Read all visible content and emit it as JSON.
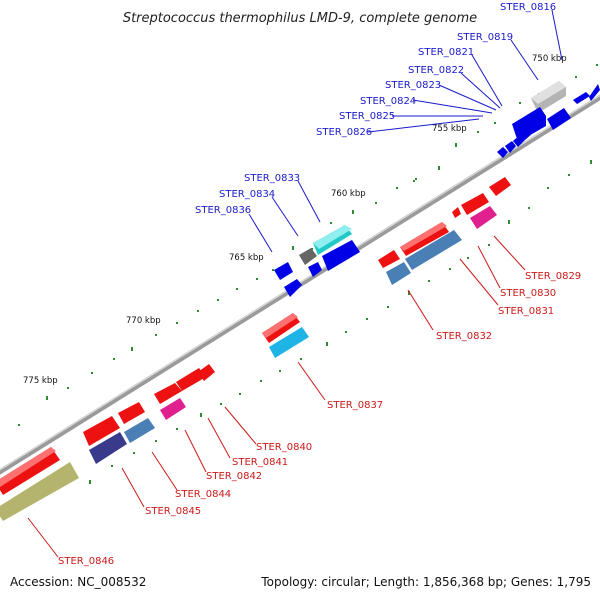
{
  "title": "Streptococcus thermophilus LMD-9, complete genome",
  "footer": {
    "accession": "Accession: NC_008532",
    "topology": "Topology: circular; Length: 1,856,368 bp; Genes: 1,795"
  },
  "scale_labels": [
    "750 kbp",
    "755 kbp",
    "760 kbp",
    "765 kbp",
    "770 kbp",
    "775 kbp"
  ],
  "colors": {
    "backbone": "#8a8a8a",
    "tick": "#2e8b2e",
    "blue_gene": "#0000e6",
    "red_gene": "#ee1111",
    "cyan_gene": "#22c8c8",
    "steel_gene": "#4a7fb5",
    "pink_gene": "#e0208f",
    "gray_gene": "#b4b4b4",
    "dark_gray_gene": "#666666",
    "navy_gene": "#3a3a8c",
    "olive_gene": "#b4b46e",
    "skyblue_gene": "#1eb4e6",
    "label_blue": "#1a1acc",
    "label_red": "#cc1a1a"
  },
  "gene_labels_upper": [
    "STER_0816",
    "STER_0819",
    "STER_0821",
    "STER_0822",
    "STER_0823",
    "STER_0824",
    "STER_0825",
    "STER_0826",
    "STER_0833",
    "STER_0834",
    "STER_0836"
  ],
  "gene_labels_lower": [
    "STER_0829",
    "STER_0830",
    "STER_0831",
    "STER_0832",
    "STER_0837",
    "STER_0840",
    "STER_0841",
    "STER_0842",
    "STER_0844",
    "STER_0845",
    "STER_0846"
  ]
}
